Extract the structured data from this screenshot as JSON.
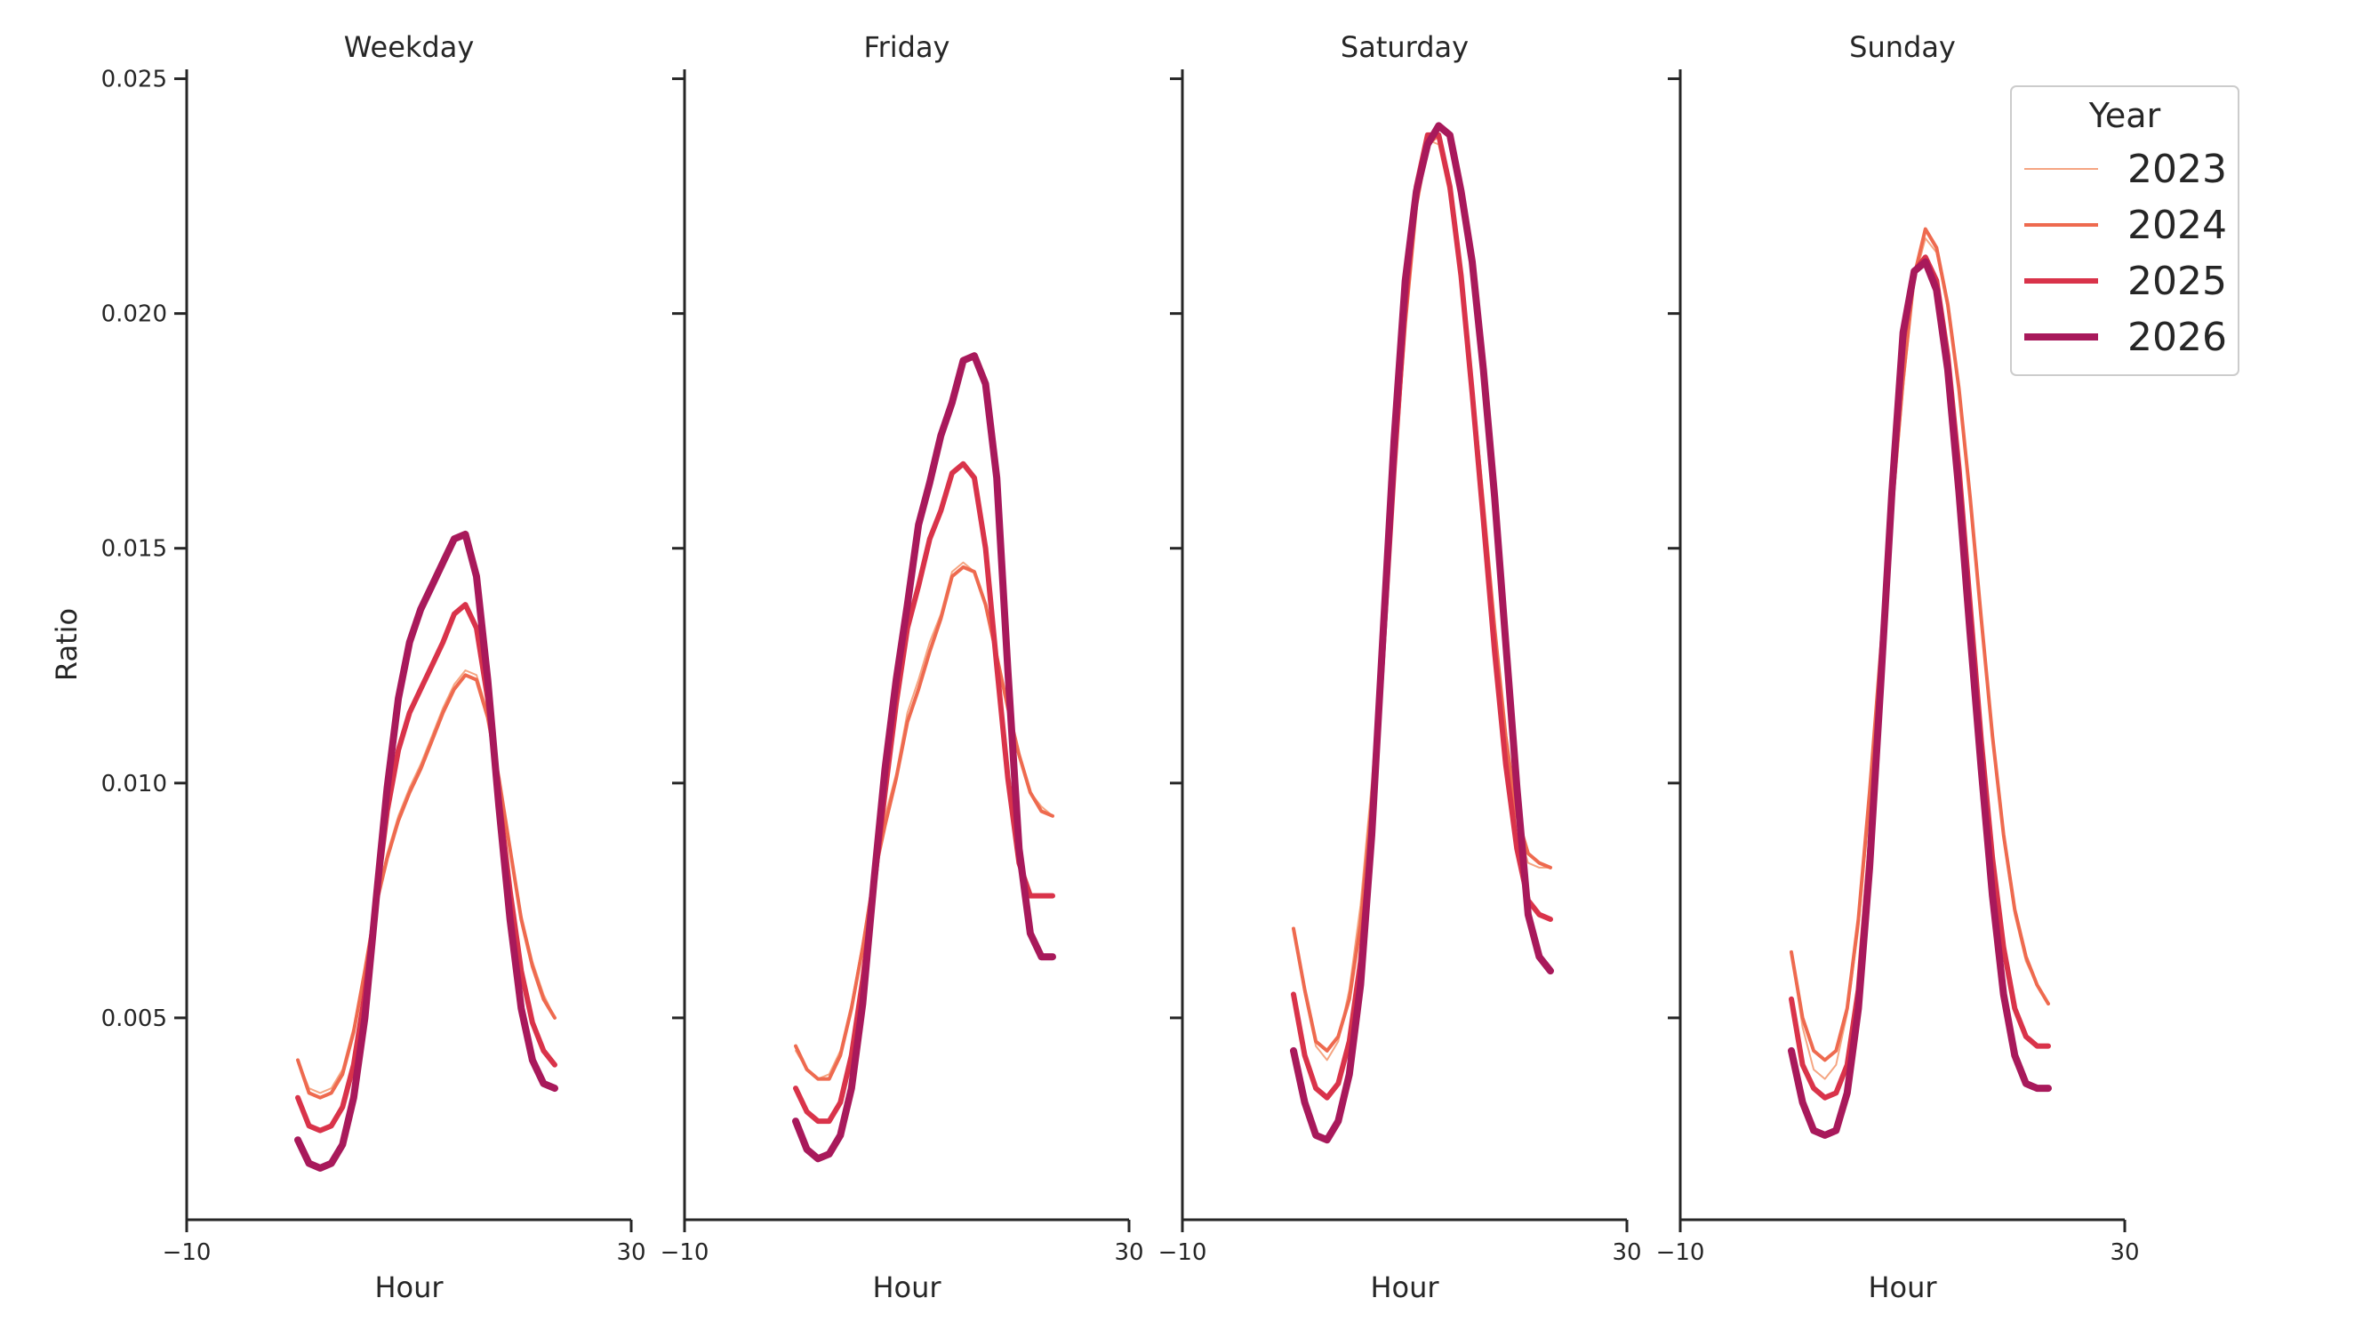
{
  "chart_data": {
    "type": "line",
    "ylabel": "Ratio",
    "xlabel": "Hour",
    "xlim": [
      -10,
      30
    ],
    "ylim": [
      0.0007,
      0.0252
    ],
    "xticks": [
      -10,
      30
    ],
    "xtick_labels": [
      "−10",
      "30"
    ],
    "yticks": [
      0.005,
      0.01,
      0.015,
      0.02,
      0.025
    ],
    "ytick_labels": [
      "0.005",
      "0.010",
      "0.015",
      "0.020",
      "0.025"
    ],
    "grid": false,
    "legend": {
      "title": "Year",
      "position": "top-right",
      "entries": [
        "2023",
        "2024",
        "2025",
        "2026"
      ]
    },
    "series_styles": [
      {
        "name": "2023",
        "color": "#f5a582",
        "width": 2
      },
      {
        "name": "2024",
        "color": "#ee6a4f",
        "width": 4
      },
      {
        "name": "2025",
        "color": "#d9334a",
        "width": 6
      },
      {
        "name": "2026",
        "color": "#a8195b",
        "width": 8
      }
    ],
    "x": [
      0,
      1,
      2,
      3,
      4,
      5,
      6,
      7,
      8,
      9,
      10,
      11,
      12,
      13,
      14,
      15,
      16,
      17,
      18,
      19,
      20,
      21,
      22,
      23
    ],
    "facets": [
      {
        "title": "Weekday",
        "series": [
          {
            "name": "2023",
            "values": [
              0.0041,
              0.0035,
              0.0034,
              0.0035,
              0.0039,
              0.0048,
              0.006,
              0.0075,
              0.0085,
              0.0093,
              0.0099,
              0.0104,
              0.011,
              0.0116,
              0.0121,
              0.0124,
              0.0123,
              0.0115,
              0.0101,
              0.0086,
              0.0072,
              0.0062,
              0.0055,
              0.005
            ]
          },
          {
            "name": "2024",
            "values": [
              0.0041,
              0.0034,
              0.0033,
              0.0034,
              0.0038,
              0.0047,
              0.006,
              0.0074,
              0.0084,
              0.0092,
              0.0098,
              0.0103,
              0.0109,
              0.0115,
              0.012,
              0.0123,
              0.0122,
              0.0114,
              0.0101,
              0.0086,
              0.0071,
              0.0061,
              0.0054,
              0.005
            ]
          },
          {
            "name": "2025",
            "values": [
              0.0033,
              0.0027,
              0.0026,
              0.0027,
              0.0031,
              0.004,
              0.0055,
              0.0075,
              0.0094,
              0.0107,
              0.0115,
              0.012,
              0.0125,
              0.013,
              0.0136,
              0.0138,
              0.0133,
              0.0118,
              0.0097,
              0.0077,
              0.006,
              0.0049,
              0.0043,
              0.004
            ]
          },
          {
            "name": "2026",
            "values": [
              0.0024,
              0.0019,
              0.0018,
              0.0019,
              0.0023,
              0.0033,
              0.005,
              0.0075,
              0.0099,
              0.0118,
              0.013,
              0.0137,
              0.0142,
              0.0147,
              0.0152,
              0.0153,
              0.0144,
              0.0122,
              0.0095,
              0.0071,
              0.0052,
              0.0041,
              0.0036,
              0.0035
            ]
          }
        ]
      },
      {
        "title": "Friday",
        "series": [
          {
            "name": "2023",
            "values": [
              0.0043,
              0.0039,
              0.0037,
              0.0038,
              0.0043,
              0.0053,
              0.0066,
              0.0081,
              0.0093,
              0.0102,
              0.0115,
              0.0122,
              0.013,
              0.0136,
              0.0145,
              0.0147,
              0.0145,
              0.0138,
              0.0127,
              0.0116,
              0.0106,
              0.0098,
              0.0095,
              0.0093
            ]
          },
          {
            "name": "2024",
            "values": [
              0.0044,
              0.0039,
              0.0037,
              0.0037,
              0.0042,
              0.0052,
              0.0065,
              0.008,
              0.0091,
              0.0101,
              0.0113,
              0.012,
              0.0128,
              0.0135,
              0.0144,
              0.0146,
              0.0145,
              0.0138,
              0.0127,
              0.0116,
              0.0106,
              0.0098,
              0.0094,
              0.0093
            ]
          },
          {
            "name": "2025",
            "values": [
              0.0035,
              0.003,
              0.0028,
              0.0028,
              0.0032,
              0.0042,
              0.0058,
              0.0078,
              0.0098,
              0.0117,
              0.0133,
              0.0142,
              0.0152,
              0.0158,
              0.0166,
              0.0168,
              0.0165,
              0.015,
              0.0125,
              0.0101,
              0.0083,
              0.0076,
              0.0076,
              0.0076
            ]
          },
          {
            "name": "2026",
            "values": [
              0.0028,
              0.0022,
              0.002,
              0.0021,
              0.0025,
              0.0035,
              0.0053,
              0.0079,
              0.0103,
              0.0122,
              0.0138,
              0.0155,
              0.0164,
              0.0174,
              0.0181,
              0.019,
              0.0191,
              0.0185,
              0.0165,
              0.0124,
              0.0086,
              0.0068,
              0.0063,
              0.0063
            ]
          }
        ]
      },
      {
        "title": "Saturday",
        "series": [
          {
            "name": "2023",
            "values": [
              0.0069,
              0.0055,
              0.0044,
              0.0041,
              0.0045,
              0.0056,
              0.0074,
              0.01,
              0.0133,
              0.0168,
              0.0201,
              0.0226,
              0.0237,
              0.0236,
              0.0225,
              0.0206,
              0.0183,
              0.0157,
              0.0131,
              0.0108,
              0.0091,
              0.0083,
              0.0082,
              0.0082
            ]
          },
          {
            "name": "2024",
            "values": [
              0.0069,
              0.0056,
              0.0045,
              0.0043,
              0.0046,
              0.0054,
              0.007,
              0.0096,
              0.0131,
              0.0166,
              0.0198,
              0.0223,
              0.0236,
              0.0238,
              0.0227,
              0.0208,
              0.0184,
              0.0159,
              0.0133,
              0.011,
              0.0093,
              0.0085,
              0.0083,
              0.0082
            ]
          },
          {
            "name": "2025",
            "values": [
              0.0055,
              0.0042,
              0.0035,
              0.0033,
              0.0036,
              0.0045,
              0.0062,
              0.009,
              0.0128,
              0.0167,
              0.0202,
              0.0227,
              0.0238,
              0.0238,
              0.0227,
              0.0208,
              0.0183,
              0.0156,
              0.0128,
              0.0104,
              0.0086,
              0.0075,
              0.0072,
              0.0071
            ]
          },
          {
            "name": "2026",
            "values": [
              0.0043,
              0.0032,
              0.0025,
              0.0024,
              0.0028,
              0.0038,
              0.0057,
              0.0089,
              0.0131,
              0.0173,
              0.0207,
              0.0226,
              0.0236,
              0.024,
              0.0238,
              0.0226,
              0.0211,
              0.0188,
              0.0161,
              0.013,
              0.0099,
              0.0072,
              0.0063,
              0.006
            ]
          }
        ]
      },
      {
        "title": "Sunday",
        "series": [
          {
            "name": "2023",
            "values": [
              0.0064,
              0.0048,
              0.0039,
              0.0037,
              0.004,
              0.0051,
              0.0069,
              0.0095,
              0.0126,
              0.0156,
              0.0184,
              0.0207,
              0.0216,
              0.0213,
              0.0201,
              0.0183,
              0.016,
              0.0134,
              0.0109,
              0.0088,
              0.0072,
              0.0062,
              0.0057,
              0.0053
            ]
          },
          {
            "name": "2024",
            "values": [
              0.0064,
              0.005,
              0.0043,
              0.0041,
              0.0043,
              0.0052,
              0.0071,
              0.0098,
              0.0128,
              0.0158,
              0.0186,
              0.0208,
              0.0218,
              0.0214,
              0.0202,
              0.0184,
              0.0161,
              0.0135,
              0.011,
              0.0089,
              0.0073,
              0.0063,
              0.0057,
              0.0053
            ]
          },
          {
            "name": "2025",
            "values": [
              0.0054,
              0.004,
              0.0035,
              0.0033,
              0.0034,
              0.004,
              0.0056,
              0.0085,
              0.0122,
              0.0161,
              0.0194,
              0.0209,
              0.0212,
              0.0207,
              0.0191,
              0.0167,
              0.0138,
              0.0109,
              0.0084,
              0.0065,
              0.0052,
              0.0046,
              0.0044,
              0.0044
            ]
          },
          {
            "name": "2026",
            "values": [
              0.0043,
              0.0032,
              0.0026,
              0.0025,
              0.0026,
              0.0034,
              0.0052,
              0.0082,
              0.0121,
              0.0162,
              0.0196,
              0.0209,
              0.0211,
              0.0205,
              0.0188,
              0.0162,
              0.0132,
              0.0103,
              0.0076,
              0.0055,
              0.0042,
              0.0036,
              0.0035,
              0.0035
            ]
          }
        ]
      }
    ]
  }
}
